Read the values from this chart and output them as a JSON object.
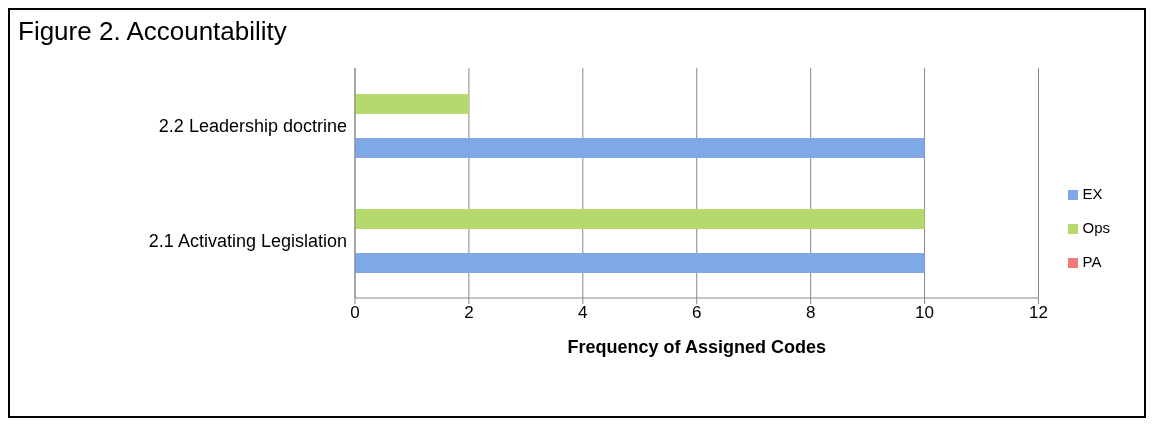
{
  "chart_data": {
    "type": "bar",
    "orientation": "horizontal",
    "title": "Figure 2. Accountability",
    "xlabel": "Frequency of Assigned Codes",
    "categories": [
      "2.2 Leadership doctrine",
      "2.1 Activating Legislation"
    ],
    "series": [
      {
        "name": "Ops",
        "color": "#b5d96d",
        "values": [
          2,
          10
        ]
      },
      {
        "name": "PA",
        "color": "#ee7b7b",
        "values": [
          0,
          0
        ]
      },
      {
        "name": "EX",
        "color": "#7ea8e6",
        "values": [
          10,
          10
        ]
      }
    ],
    "xlim": [
      0,
      12
    ],
    "xticks": [
      0,
      2,
      4,
      6,
      8,
      10,
      12
    ],
    "grid": "x",
    "legend": "right"
  }
}
